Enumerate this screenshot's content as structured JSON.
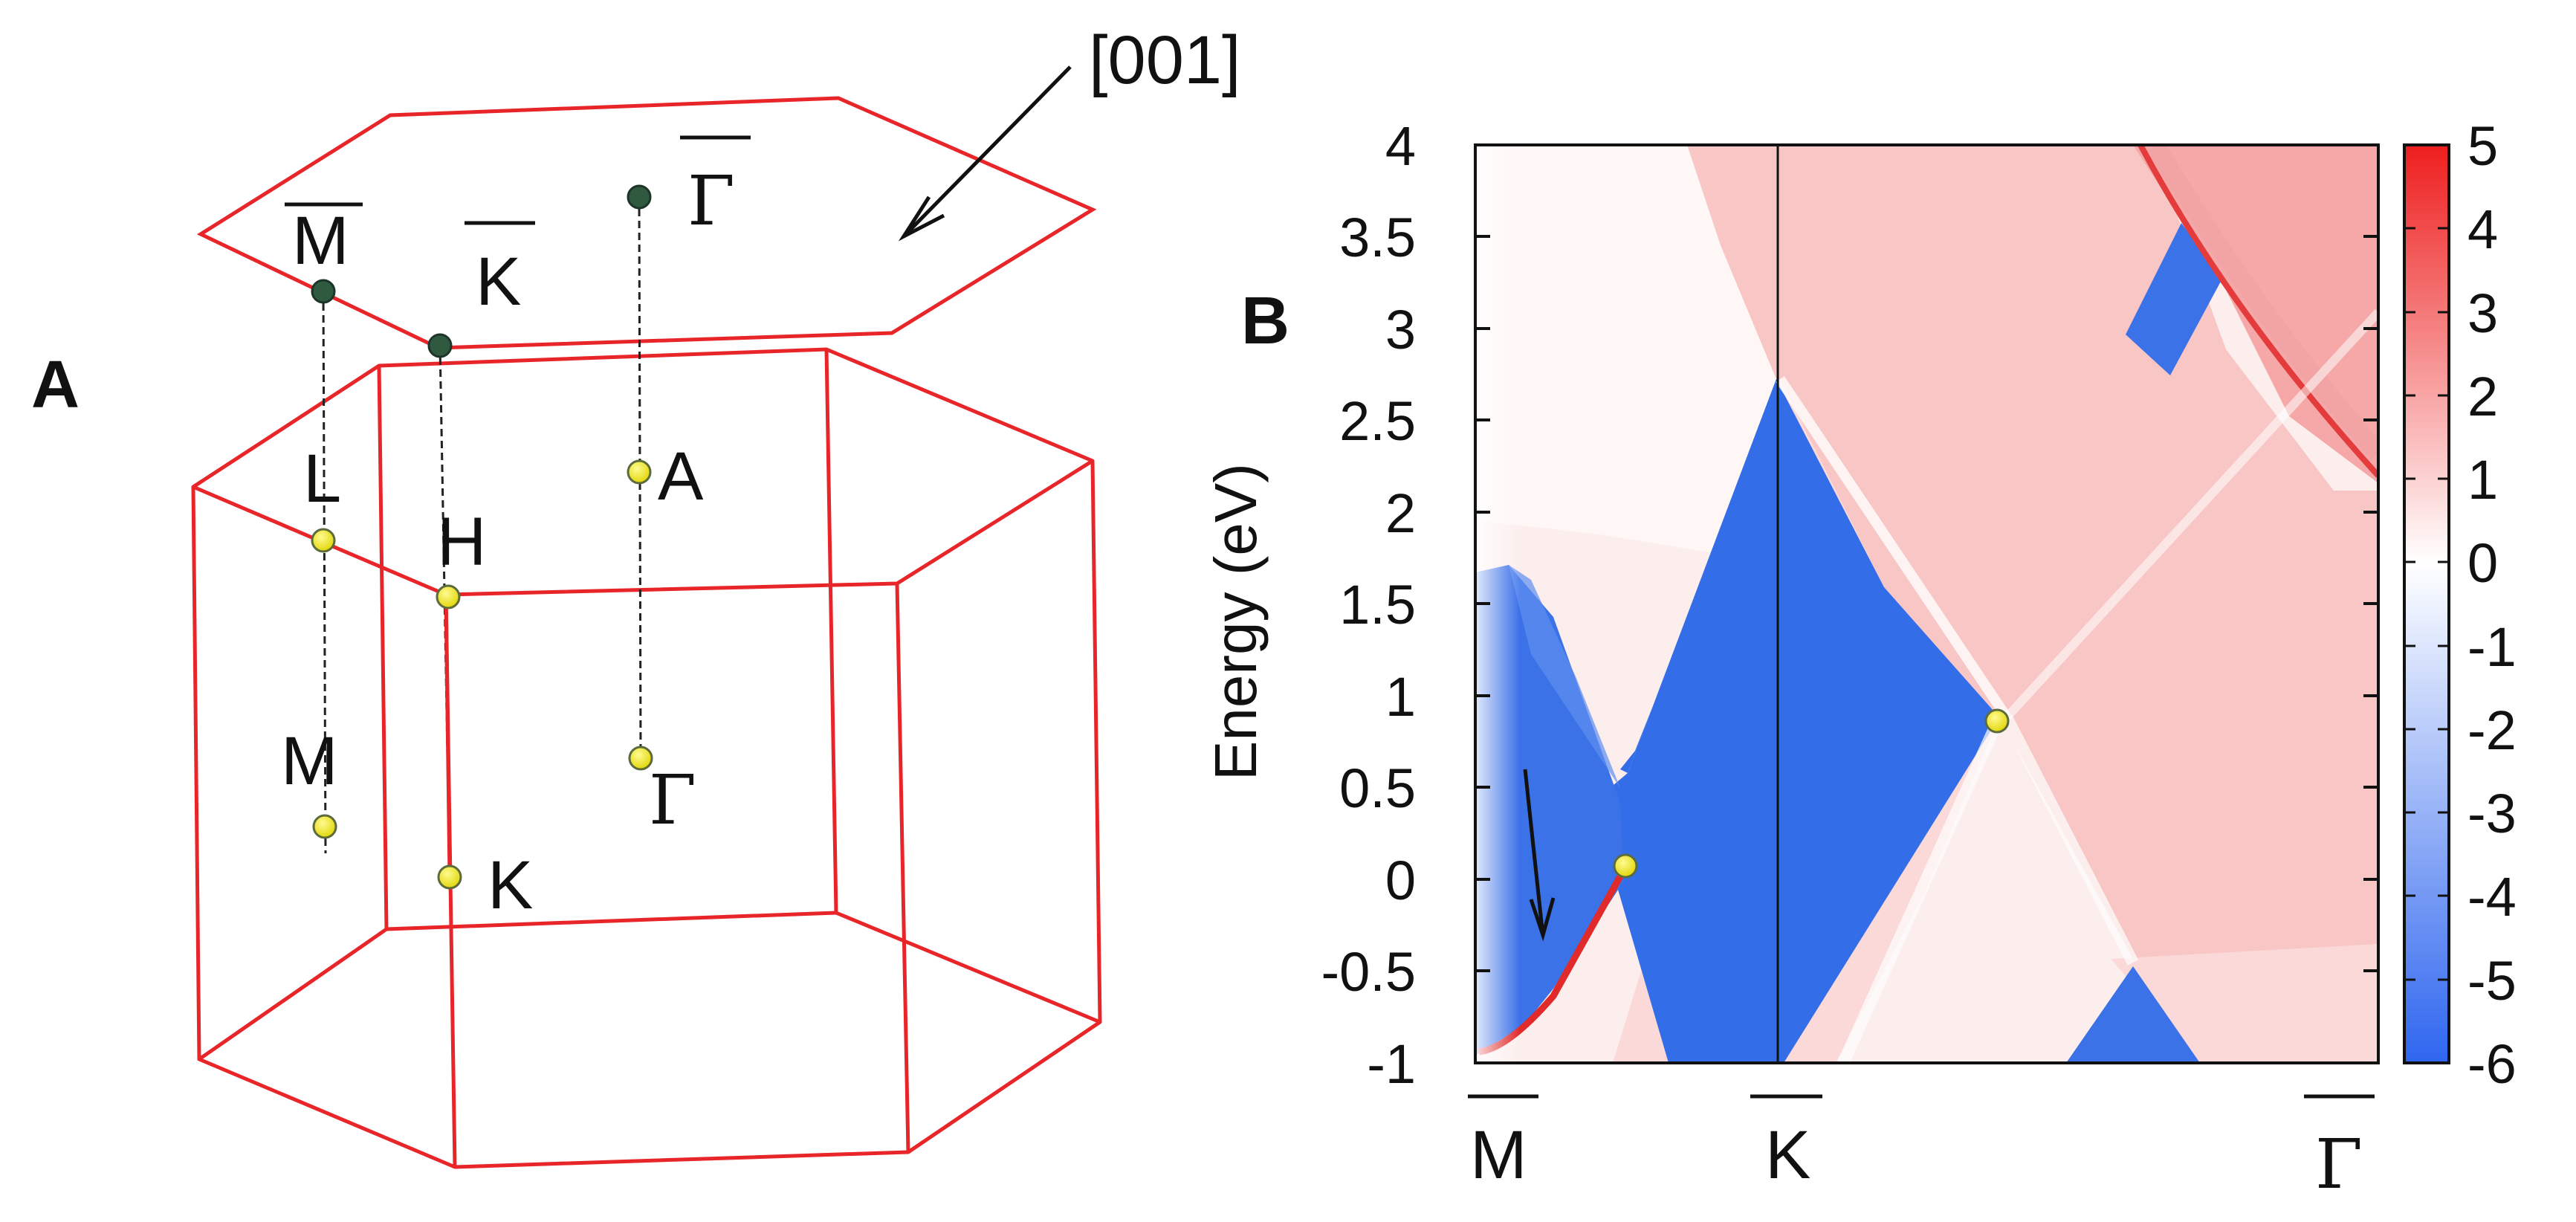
{
  "panel_a": {
    "letter": "A",
    "direction_label": "[001]",
    "points": {
      "M_bar": "M",
      "K_bar": "K",
      "Gamma_bar": "Γ",
      "L": "L",
      "H": "H",
      "A": "A",
      "M": "M",
      "K": "K",
      "Gamma": "Γ"
    },
    "colors": {
      "edges": "#e8262a",
      "point_fill": "#f2ec2a",
      "point_dark": "#2f5a40"
    }
  },
  "panel_b": {
    "letter": "B",
    "ylabel": "Energy (eV)",
    "yticks": [
      "4",
      "3.5",
      "3",
      "2.5",
      "2",
      "1.5",
      "1",
      "0.5",
      "0",
      "-0.5",
      "-1"
    ],
    "xticks": [
      "M",
      "K",
      "Γ"
    ],
    "colorbar_ticks": [
      "5",
      "4",
      "3",
      "2",
      "1",
      "0",
      "-1",
      "-2",
      "-3",
      "-4",
      "-5",
      "-6"
    ],
    "colors": {
      "red": "#ef3a3a",
      "blue": "#3b6fe6",
      "white": "#ffffff"
    }
  },
  "chart_data": {
    "type": "heatmap",
    "title": "",
    "xlabel": "",
    "ylabel": "Energy (eV)",
    "x_ticks": [
      "M",
      "K",
      "Γ"
    ],
    "ylim": [
      -1,
      4
    ],
    "colorbar_range": [
      -6,
      5
    ],
    "colorbar_ticks": [
      5,
      4,
      3,
      2,
      1,
      0,
      -1,
      -2,
      -3,
      -4,
      -5,
      -6
    ],
    "markers_energy_eV": [
      0.05,
      0.85
    ]
  }
}
